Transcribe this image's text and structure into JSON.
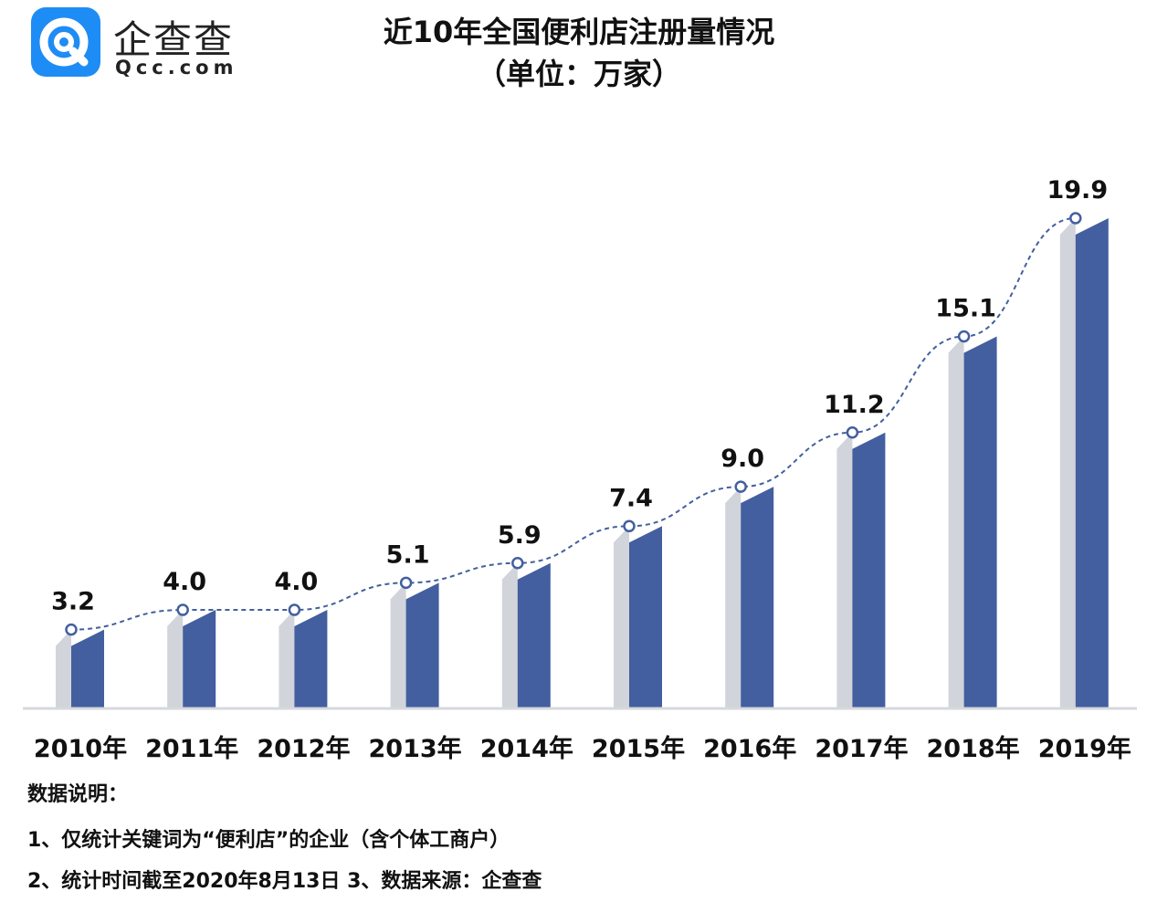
{
  "logo": {
    "name_cn": "企查查",
    "name_en": "Qcc.com",
    "brand_color": "#1e8cf5"
  },
  "title": "近10年全国便利店注册量情况",
  "subtitle": "（单位：万家）",
  "chart_data": {
    "type": "bar",
    "title": "近10年全国便利店注册量情况",
    "subtitle": "（单位：万家）",
    "categories": [
      "2010年",
      "2011年",
      "2012年",
      "2013年",
      "2014年",
      "2015年",
      "2016年",
      "2017年",
      "2018年",
      "2019年"
    ],
    "values": [
      3.2,
      4.0,
      4.0,
      5.1,
      5.9,
      7.4,
      9.0,
      11.2,
      15.1,
      19.9
    ],
    "value_labels": [
      "3.2",
      "4.0",
      "4.0",
      "5.1",
      "5.9",
      "7.4",
      "9.0",
      "11.2",
      "15.1",
      "19.9"
    ],
    "trend_line": true,
    "ylim": [
      0,
      19.9
    ],
    "grid": false,
    "colors": {
      "bar": "#435f9f",
      "bar_shadow": "#d1d4da",
      "trend": "#435f9f",
      "axis": "#d6d8dc"
    }
  },
  "notes": {
    "heading": "数据说明：",
    "line1": "1、仅统计关键词为“便利店”的企业（含个体工商户）",
    "line2": "2、统计时间截至2020年8月13日 3、数据来源：企查查"
  }
}
